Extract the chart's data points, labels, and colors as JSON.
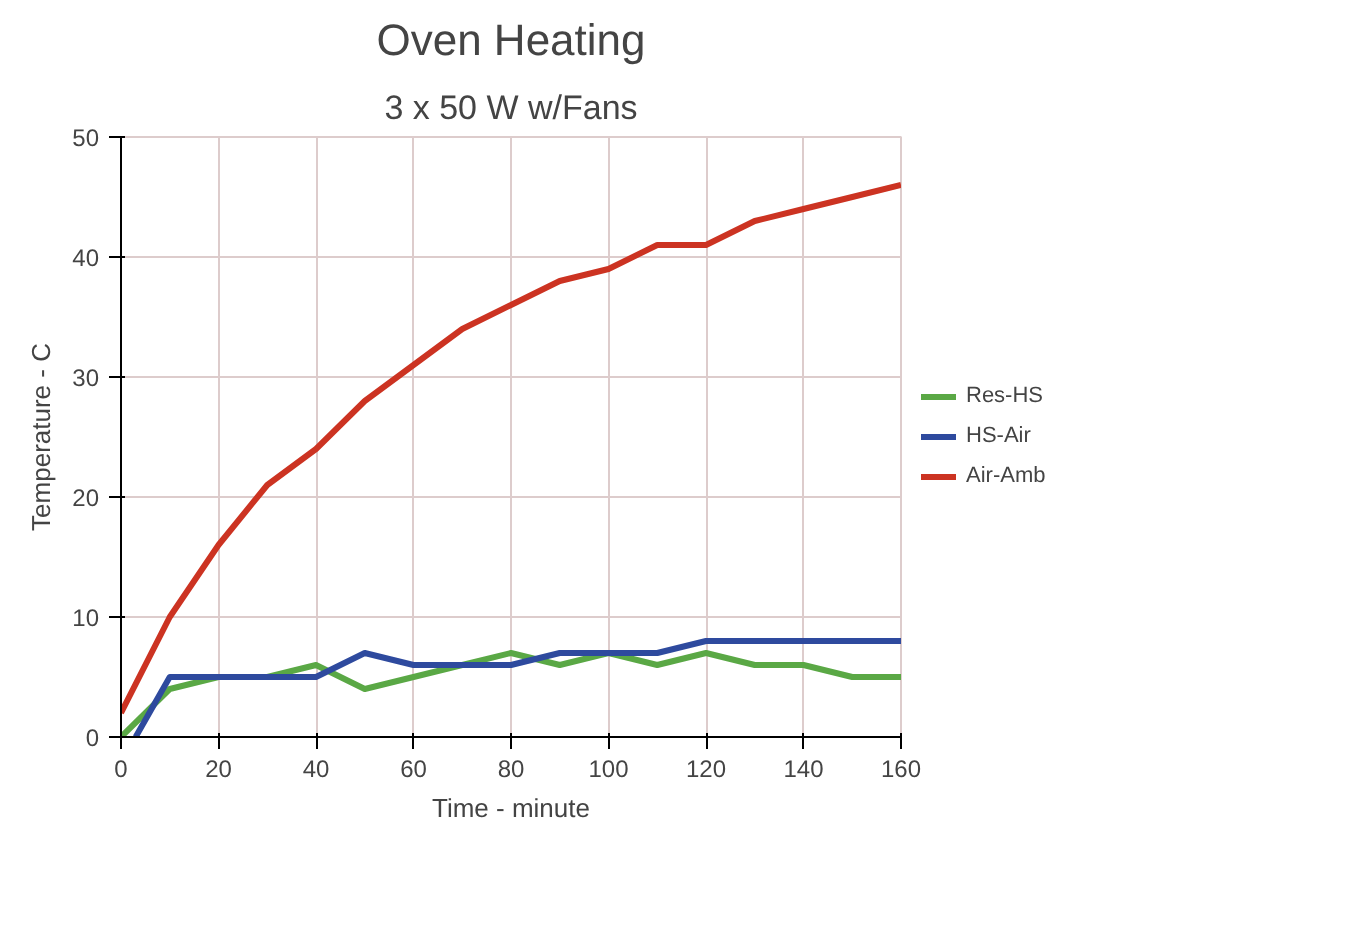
{
  "chart_data": {
    "type": "line",
    "title": "Oven Heating",
    "subtitle": "3 x 50 W w/Fans",
    "xlabel": "Time - minute",
    "ylabel": "Temperature - C",
    "x": [
      0,
      10,
      20,
      30,
      40,
      50,
      60,
      70,
      80,
      90,
      100,
      110,
      120,
      130,
      140,
      150,
      160
    ],
    "series": [
      {
        "name": "Res-HS",
        "color": "#5aa845",
        "values": [
          0,
          4,
          5,
          5,
          6,
          4,
          5,
          6,
          7,
          6,
          7,
          6,
          7,
          6,
          6,
          5,
          5
        ]
      },
      {
        "name": "HS-Air",
        "color": "#2e4a9e",
        "x": [
          3,
          10,
          20,
          30,
          40,
          50,
          60,
          70,
          80,
          90,
          100,
          110,
          120,
          130,
          140,
          150,
          160
        ],
        "values": [
          0,
          5,
          5,
          5,
          5,
          7,
          6,
          6,
          6,
          7,
          7,
          7,
          8,
          8,
          8,
          8,
          8
        ]
      },
      {
        "name": "Air-Amb",
        "color": "#cc3322",
        "values": [
          2,
          10,
          16,
          21,
          24,
          28,
          31,
          34,
          36,
          38,
          39,
          41,
          41,
          43,
          44,
          45,
          46
        ]
      }
    ],
    "xlim": [
      0,
      160
    ],
    "ylim": [
      0,
      50
    ],
    "xticks": [
      0,
      20,
      40,
      60,
      80,
      100,
      120,
      140,
      160
    ],
    "yticks": [
      0,
      10,
      20,
      30,
      40,
      50
    ],
    "grid": true,
    "legend": "right",
    "marker": "none",
    "line_style": "solid"
  }
}
